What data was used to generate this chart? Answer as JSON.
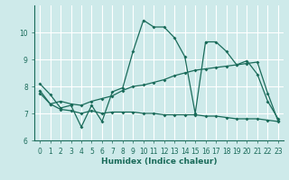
{
  "xlabel": "Humidex (Indice chaleur)",
  "ylabel": "",
  "background_color": "#ceeaea",
  "line_color": "#1a6b5a",
  "grid_color": "#ffffff",
  "xlim": [
    -0.5,
    23.5
  ],
  "ylim": [
    6,
    11
  ],
  "yticks": [
    6,
    7,
    8,
    9,
    10
  ],
  "xticks": [
    0,
    1,
    2,
    3,
    4,
    5,
    6,
    7,
    8,
    9,
    10,
    11,
    12,
    13,
    14,
    15,
    16,
    17,
    18,
    19,
    20,
    21,
    22,
    23
  ],
  "line1_x": [
    0,
    1,
    2,
    3,
    4,
    5,
    6,
    7,
    8,
    9,
    10,
    11,
    12,
    13,
    14,
    15,
    16,
    17,
    18,
    19,
    20,
    21,
    22,
    23
  ],
  "line1_y": [
    8.1,
    7.7,
    7.2,
    7.3,
    6.5,
    7.3,
    6.7,
    7.8,
    7.95,
    9.3,
    10.45,
    10.2,
    10.2,
    9.8,
    9.1,
    7.0,
    9.65,
    9.65,
    9.3,
    8.8,
    8.95,
    8.45,
    7.45,
    6.8
  ],
  "line2_x": [
    0,
    1,
    2,
    3,
    4,
    5,
    6,
    7,
    8,
    9,
    10,
    11,
    12,
    13,
    14,
    15,
    16,
    17,
    18,
    19,
    20,
    21,
    22,
    23
  ],
  "line2_y": [
    7.85,
    7.35,
    7.45,
    7.35,
    7.3,
    7.45,
    7.55,
    7.65,
    7.85,
    8.0,
    8.05,
    8.15,
    8.25,
    8.4,
    8.5,
    8.6,
    8.65,
    8.7,
    8.75,
    8.8,
    8.85,
    8.9,
    7.75,
    6.72
  ],
  "line3_x": [
    0,
    1,
    2,
    3,
    4,
    5,
    6,
    7,
    8,
    9,
    10,
    11,
    12,
    13,
    14,
    15,
    16,
    17,
    18,
    19,
    20,
    21,
    22,
    23
  ],
  "line3_y": [
    7.75,
    7.35,
    7.15,
    7.1,
    7.0,
    7.1,
    7.0,
    7.05,
    7.05,
    7.05,
    7.0,
    7.0,
    6.95,
    6.95,
    6.95,
    6.95,
    6.9,
    6.9,
    6.85,
    6.8,
    6.8,
    6.8,
    6.75,
    6.7
  ]
}
